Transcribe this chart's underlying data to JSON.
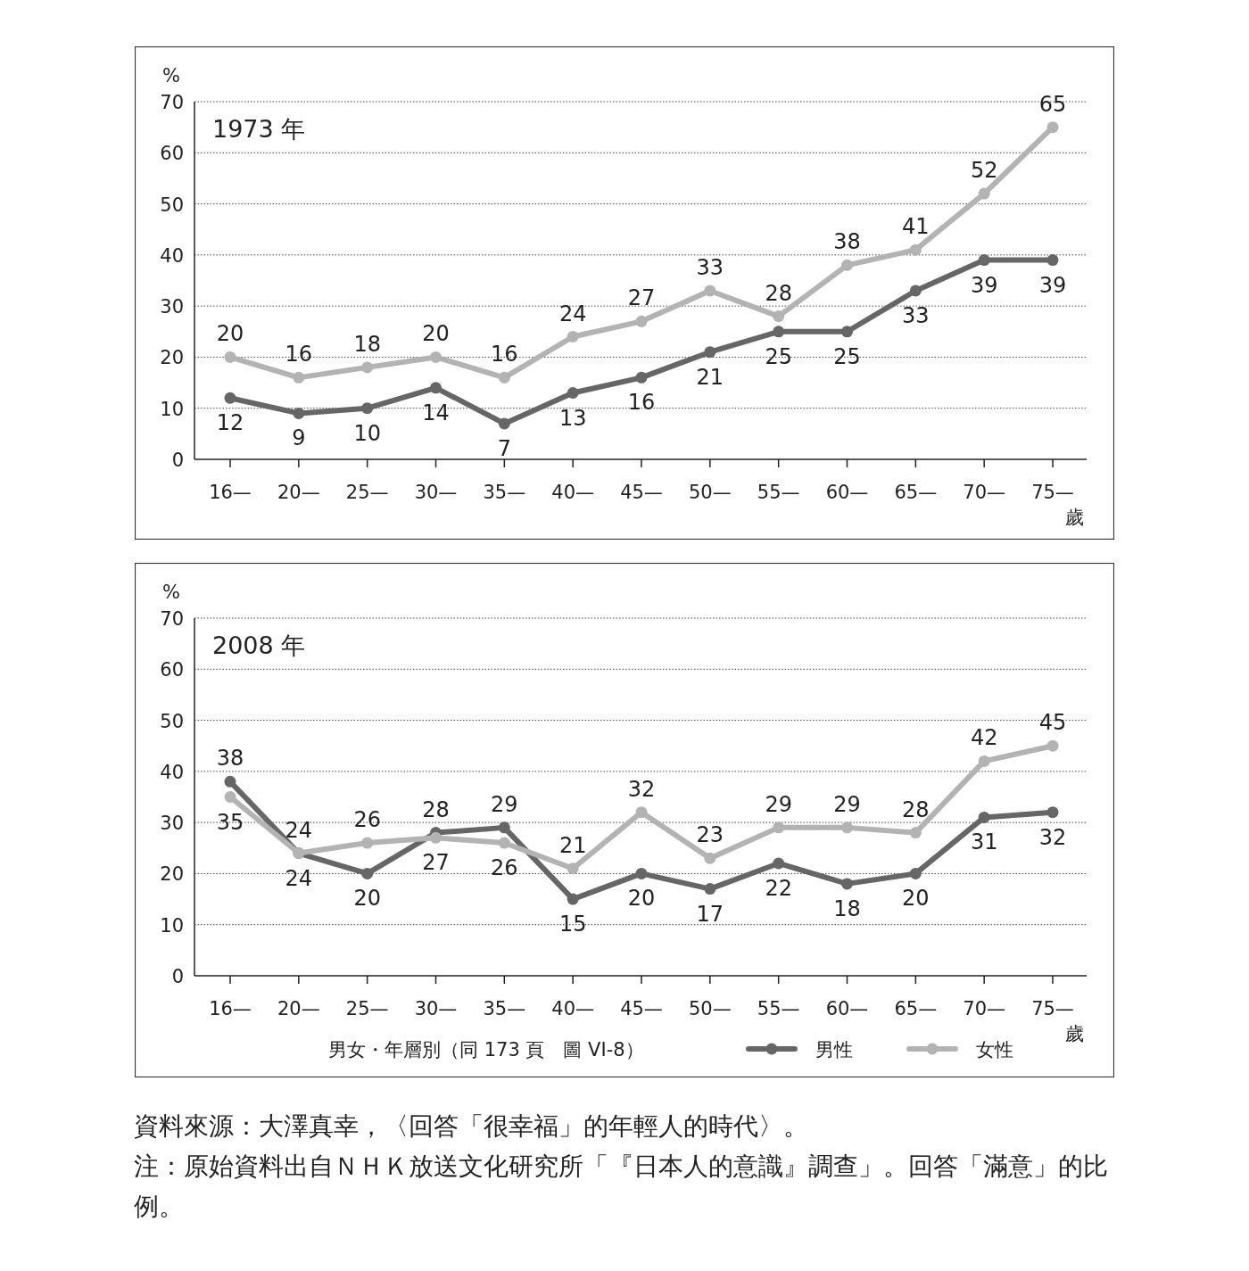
{
  "chart_data": [
    {
      "type": "line",
      "title": "1973 年",
      "ylabel": "%",
      "xlabel": "歲",
      "categories": [
        "16—",
        "20—",
        "25—",
        "30—",
        "35—",
        "40—",
        "45—",
        "50—",
        "55—",
        "60—",
        "65—",
        "70—",
        "75—"
      ],
      "series": [
        {
          "color": "#666666",
          "values": [
            12,
            9,
            10,
            14,
            7,
            13,
            16,
            21,
            25,
            25,
            33,
            39,
            39
          ]
        },
        {
          "color": "#b3b3b3",
          "values": [
            20,
            16,
            18,
            20,
            16,
            24,
            27,
            33,
            28,
            38,
            41,
            52,
            65
          ]
        }
      ],
      "ylim": [
        0,
        70
      ],
      "yticks": [
        0,
        10,
        20,
        30,
        40,
        50,
        60,
        70
      ],
      "grid": "y",
      "marker": "circle",
      "line_style": "solid",
      "data_labels": true,
      "legend": false
    },
    {
      "type": "line",
      "title": "2008 年",
      "ylabel": "%",
      "xlabel": "歲",
      "categories": [
        "16—",
        "20—",
        "25—",
        "30—",
        "35—",
        "40—",
        "45—",
        "50—",
        "55—",
        "60—",
        "65—",
        "70—",
        "75—"
      ],
      "series": [
        {
          "name": "男性",
          "color": "#666666",
          "values": [
            38,
            24,
            20,
            28,
            29,
            15,
            20,
            17,
            22,
            18,
            20,
            31,
            32
          ]
        },
        {
          "name": "女性",
          "color": "#b3b3b3",
          "values": [
            35,
            24,
            26,
            27,
            26,
            21,
            32,
            23,
            29,
            29,
            28,
            42,
            45
          ]
        }
      ],
      "ylim": [
        0,
        70
      ],
      "yticks": [
        0,
        10,
        20,
        30,
        40,
        50,
        60,
        70
      ],
      "grid": "y",
      "marker": "circle",
      "line_style": "solid",
      "data_labels": true,
      "legend": "bottom",
      "annotations": [
        "男女・年層別（同 173 頁　圖 VI-8）",
        "資料來源：大澤真幸，〈回答「很幸福」的年輕人的時代〉。",
        "注：原始資料出自ＮＨＫ放送文化研究所「『日本人的意識』調查」。回答「滿意」的比例。"
      ]
    }
  ]
}
